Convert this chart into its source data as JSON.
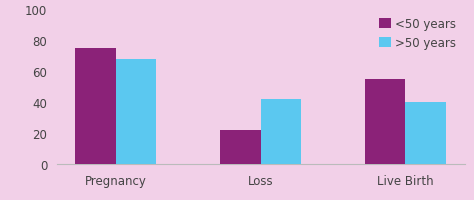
{
  "categories": [
    "Pregnancy",
    "Loss",
    "Live Birth"
  ],
  "series": [
    {
      "label": "<50 years",
      "values": [
        75,
        22,
        55
      ],
      "color": "#8B2278"
    },
    {
      "label": ">50 years",
      "values": [
        68,
        42,
        40
      ],
      "color": "#5BC8F0"
    }
  ],
  "ylim": [
    0,
    100
  ],
  "yticks": [
    0,
    20,
    40,
    60,
    80,
    100
  ],
  "background_color": "#F2D0E8",
  "bar_width": 0.28,
  "axis_bg_color": "#F2D0E8",
  "legend_fontsize": 8.5,
  "tick_fontsize": 8.5,
  "spine_color": "#bbbbbb",
  "text_color": "#444444"
}
